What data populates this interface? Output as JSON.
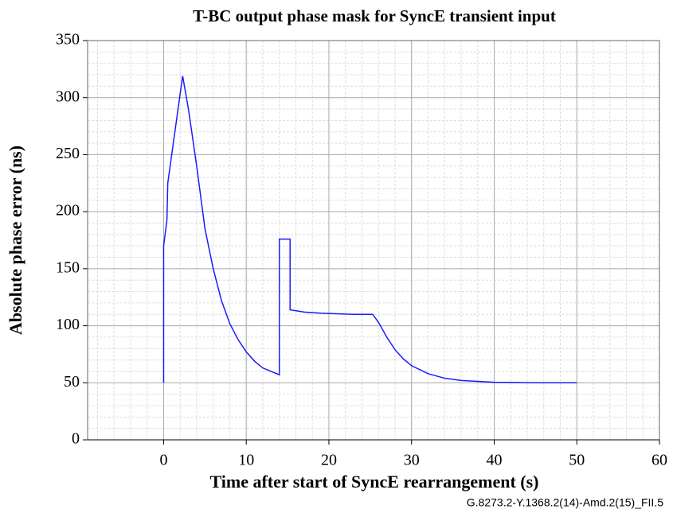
{
  "chart_data": {
    "type": "line",
    "title": "T-BC output phase mask for SyncE transient input",
    "x_label": "Time after start of SyncE rearrangement (s)",
    "y_label": "Absolute phase error (ns)",
    "source": "G.8273.2-Y.1368.2(14)-Amd.2(15)_FII.5",
    "x": [
      0,
      0,
      0.4,
      0.5,
      2.3,
      3,
      4,
      5,
      6,
      7,
      8,
      9,
      10,
      11,
      12,
      13,
      14,
      14,
      15.3,
      15.3,
      17,
      19,
      21,
      23,
      25.3,
      26,
      27,
      28,
      29,
      30,
      32,
      34,
      36,
      40,
      45,
      50
    ],
    "series": [
      {
        "name": "mask",
        "color": "#1a1aff",
        "values": [
          50,
          170,
          193,
          225,
          319,
          290,
          240,
          185,
          150,
          122,
          102,
          88,
          77,
          69,
          63,
          60,
          57,
          176,
          176,
          114,
          112,
          111,
          110.5,
          110,
          110,
          103,
          90,
          79,
          71,
          65,
          58,
          54,
          52,
          50.5,
          50,
          50
        ]
      }
    ],
    "xlim": [
      -9.2,
      60
    ],
    "xticks": [
      0,
      10,
      20,
      30,
      40,
      50,
      60
    ],
    "ylim": [
      0,
      350
    ],
    "yticks": [
      0,
      50,
      100,
      150,
      200,
      250,
      300,
      350
    ],
    "grid": true
  }
}
